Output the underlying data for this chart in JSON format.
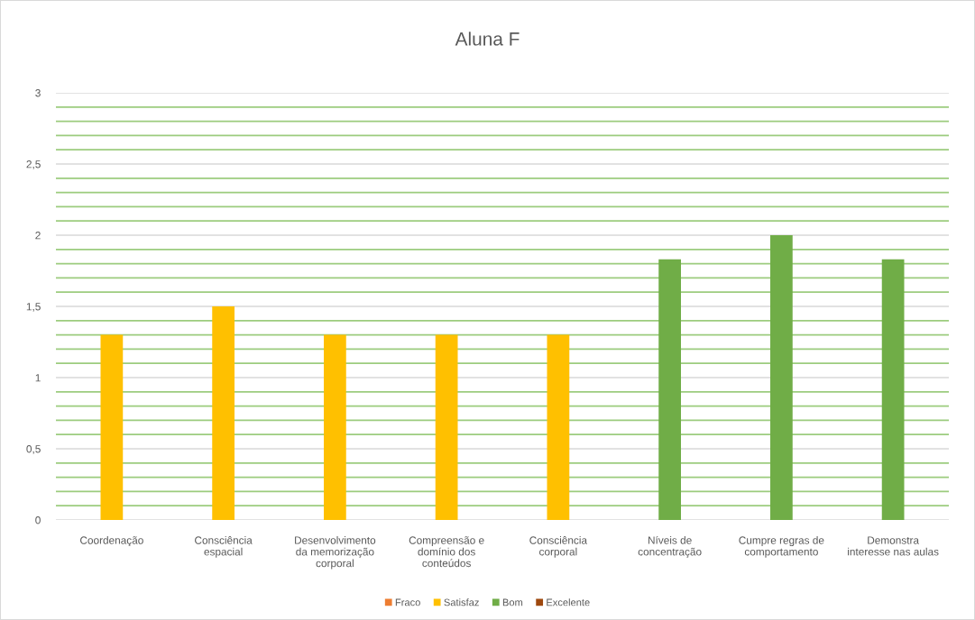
{
  "chart_data": {
    "type": "bar",
    "title": "Aluna F",
    "categories": [
      "Coordenação",
      "Consciência\nespacial",
      "Desenvolvimento\nda memorização\ncorporal",
      "Compreensão e\ndomínio dos\nconteúdos",
      "Consciência\ncorporal",
      "Níveis de\nconcentração",
      "Cumpre regras de\ncomportamento",
      "Demonstra\ninteresse nas aulas"
    ],
    "series": [
      {
        "name": "Fraco",
        "color": "#ed7d31",
        "values": [
          null,
          null,
          null,
          null,
          null,
          null,
          null,
          null
        ]
      },
      {
        "name": "Satisfaz",
        "color": "#ffc000",
        "values": [
          1.3,
          1.5,
          1.3,
          1.3,
          1.3,
          null,
          null,
          null
        ]
      },
      {
        "name": "Bom",
        "color": "#70ad47",
        "values": [
          null,
          null,
          null,
          null,
          null,
          1.83,
          2.0,
          1.83
        ]
      },
      {
        "name": "Excelente",
        "color": "#9e480e",
        "values": [
          null,
          null,
          null,
          null,
          null,
          null,
          null,
          null
        ]
      }
    ],
    "stacked": true,
    "ylim": [
      0,
      3
    ],
    "yticks": [
      0,
      {
        "value": 0.1,
        "label": null
      },
      {
        "value": 0.2,
        "label": null
      },
      {
        "value": 0.3,
        "label": null
      },
      {
        "value": 0.4,
        "label": null
      },
      {
        "value": 0.5,
        "label": "0,5"
      },
      {
        "value": 0.6,
        "label": null
      },
      {
        "value": 0.7,
        "label": null
      },
      {
        "value": 0.8,
        "label": null
      },
      {
        "value": 0.9,
        "label": null
      },
      1,
      {
        "value": 1.1,
        "label": null
      },
      {
        "value": 1.2,
        "label": null
      },
      {
        "value": 1.3,
        "label": null
      },
      {
        "value": 1.4,
        "label": null
      },
      {
        "value": 1.5,
        "label": "1,5"
      },
      {
        "value": 1.6,
        "label": null
      },
      {
        "value": 1.7,
        "label": null
      },
      {
        "value": 1.8,
        "label": null
      },
      {
        "value": 1.9,
        "label": null
      },
      2,
      {
        "value": 2.1,
        "label": null
      },
      {
        "value": 2.2,
        "label": null
      },
      {
        "value": 2.3,
        "label": null
      },
      {
        "value": 2.4,
        "label": null
      },
      {
        "value": 2.5,
        "label": "2,5"
      },
      {
        "value": 2.6,
        "label": null
      },
      {
        "value": 2.7,
        "label": null
      },
      {
        "value": 2.8,
        "label": null
      },
      {
        "value": 2.9,
        "label": null
      },
      3
    ],
    "grid": "y",
    "legend": "bottom"
  }
}
